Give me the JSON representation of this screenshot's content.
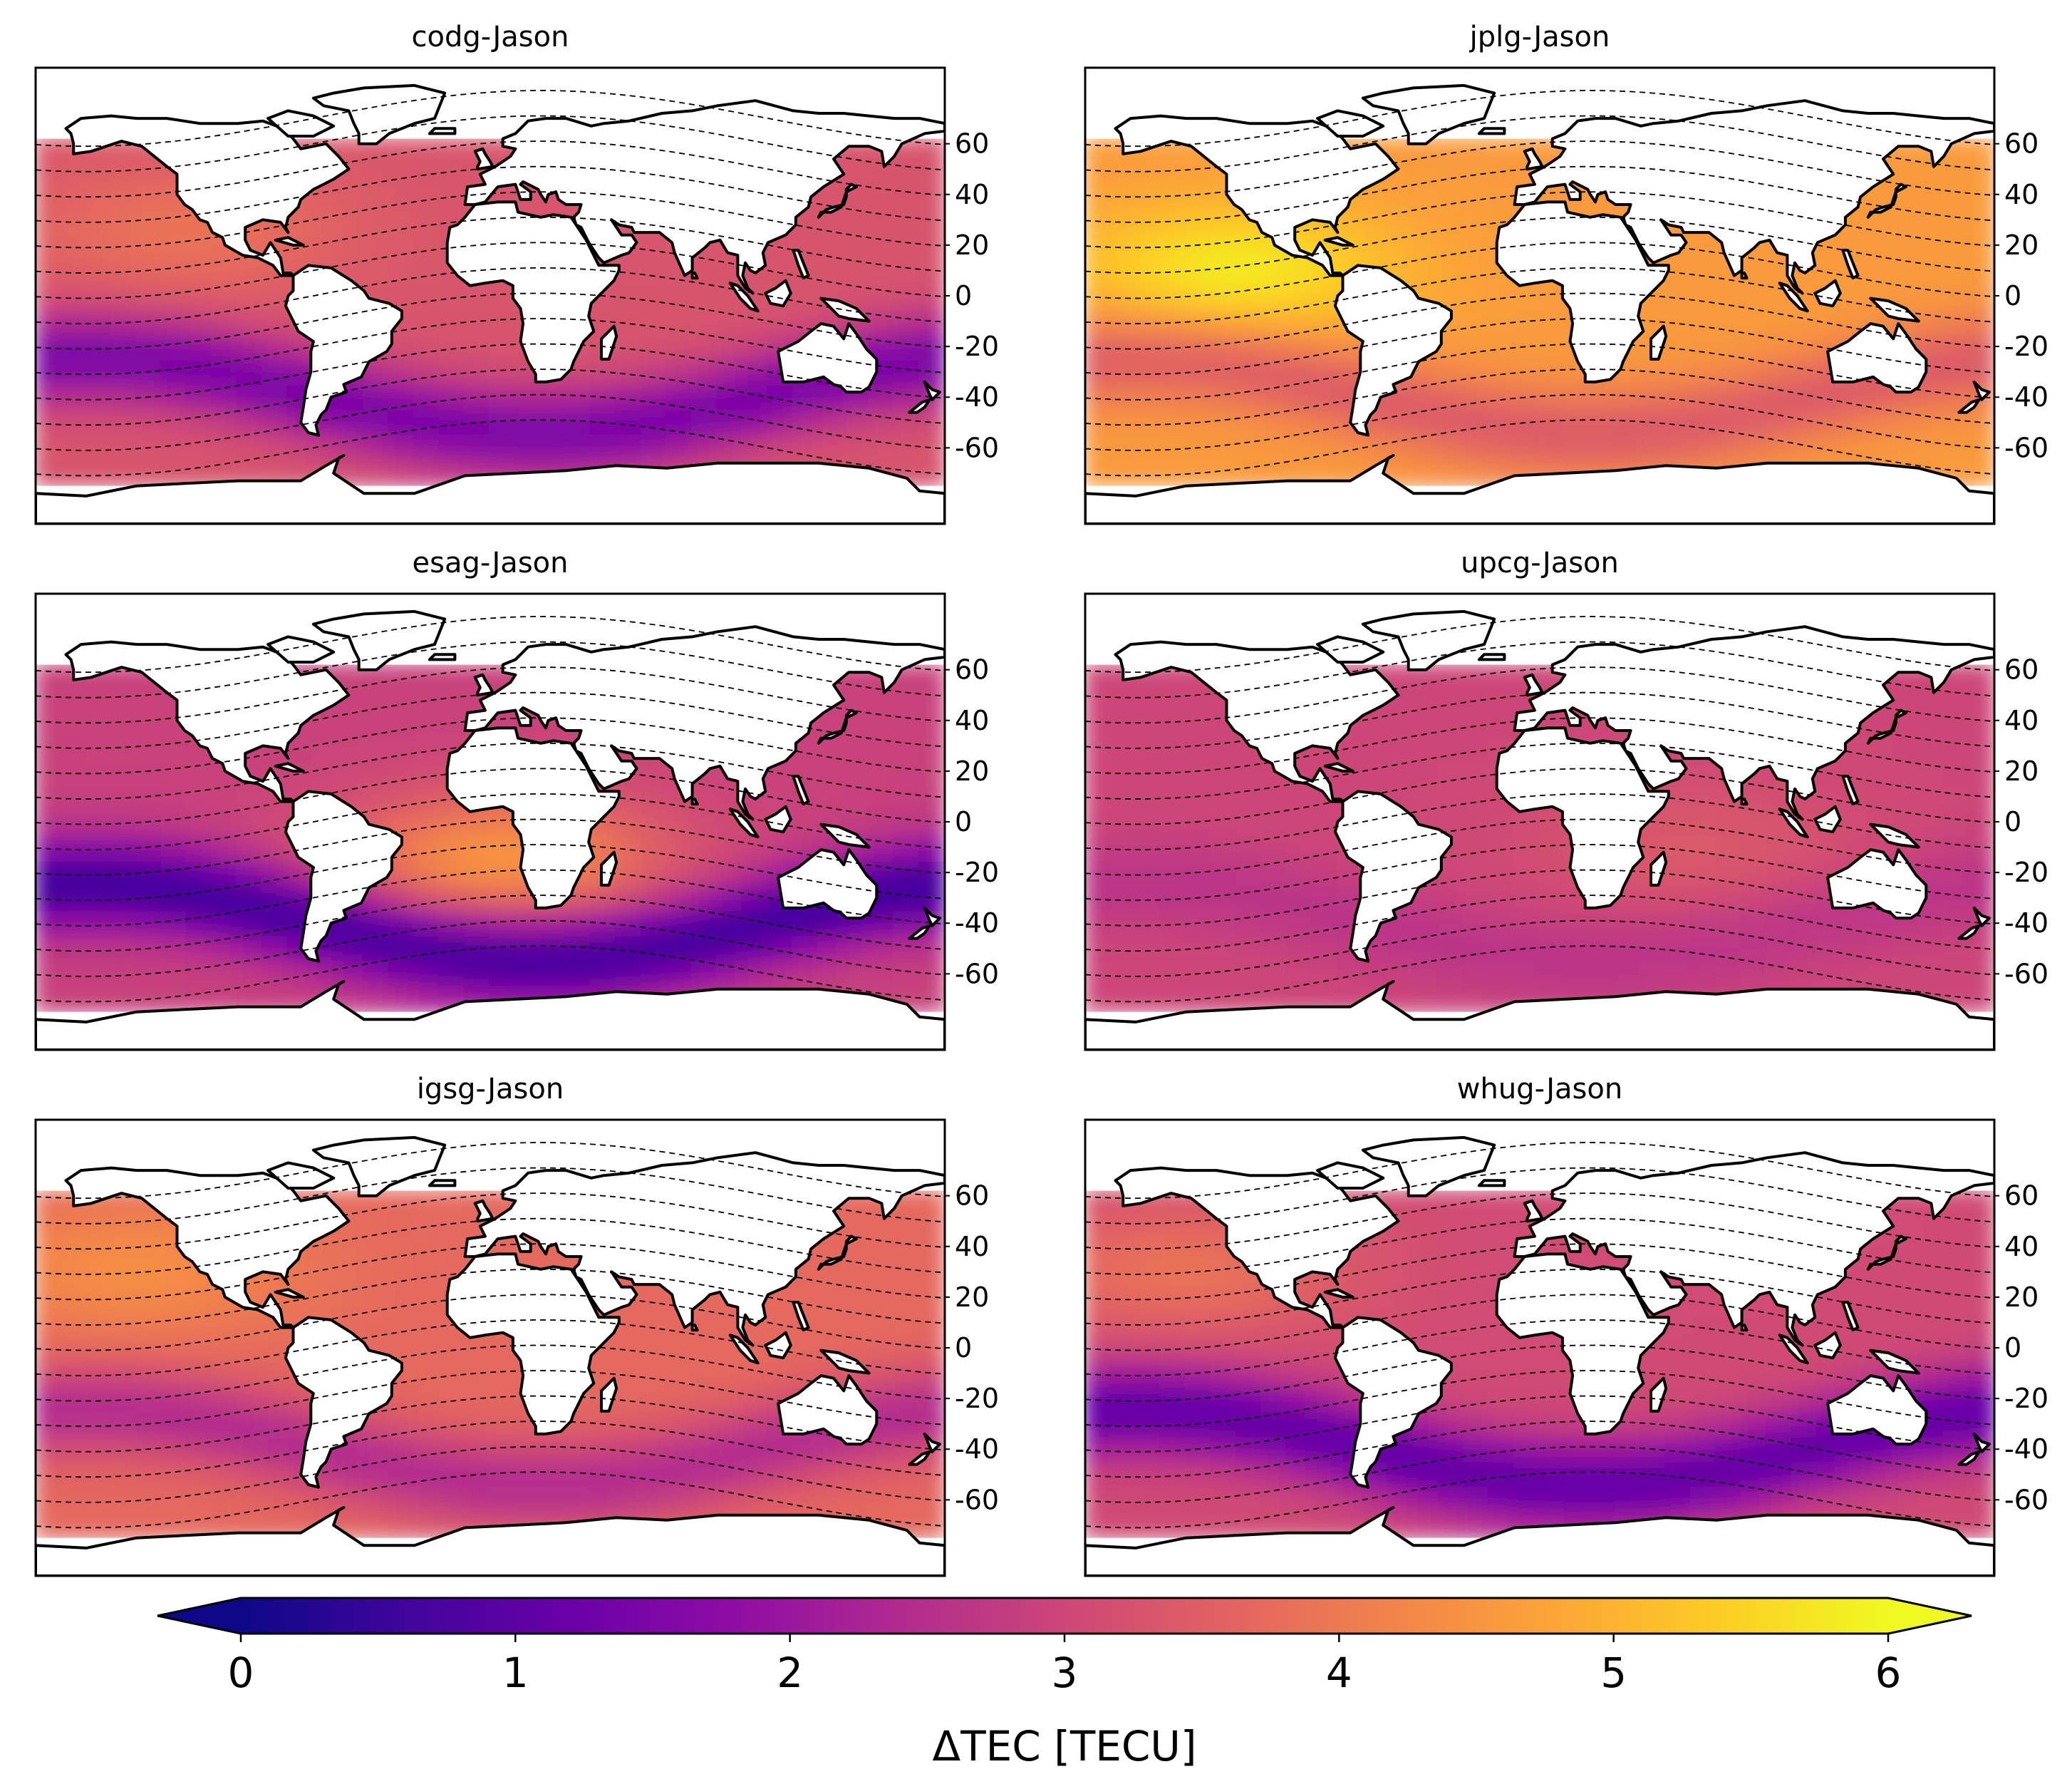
{
  "figure": {
    "panels": [
      {
        "id": "codg",
        "title": "codg-Jason",
        "hot_spot": {
          "lon": -120,
          "lat": 25,
          "value": 3.9
        },
        "base_value": 3.3,
        "trough_value": 1.4
      },
      {
        "id": "jplg",
        "title": "jplg-Jason",
        "hot_spot": {
          "lon": -120,
          "lat": 10,
          "value": 5.8
        },
        "base_value": 4.6,
        "trough_value": 3.4
      },
      {
        "id": "esag",
        "title": "esag-Jason",
        "hot_spot": {
          "lon": 5,
          "lat": -15,
          "value": 4.5
        },
        "base_value": 2.9,
        "trough_value": 0.5
      },
      {
        "id": "upcg",
        "title": "upcg-Jason",
        "hot_spot": {
          "lon": 60,
          "lat": -10,
          "value": 3.4
        },
        "base_value": 3.0,
        "trough_value": 2.6
      },
      {
        "id": "igsg",
        "title": "igsg-Jason",
        "hot_spot": {
          "lon": -140,
          "lat": 30,
          "value": 4.4
        },
        "base_value": 3.7,
        "trough_value": 2.4
      },
      {
        "id": "whug",
        "title": "whug-Jason",
        "hot_spot": {
          "lon": -140,
          "lat": 30,
          "value": 3.9
        },
        "base_value": 3.1,
        "trough_value": 1.0
      }
    ],
    "lat_ticks": [
      "60",
      "40",
      "20",
      "0",
      "-20",
      "-40",
      "-60"
    ],
    "lat_tick_values": [
      60,
      40,
      20,
      0,
      -20,
      -40,
      -60
    ],
    "data_lat_range": [
      -75,
      62
    ],
    "map_extent": {
      "lon": [
        -180,
        180
      ],
      "lat": [
        -90,
        90
      ]
    },
    "dashed_line_count": 14
  },
  "colorbar": {
    "label": "ΔTEC [TECU]",
    "min": 0,
    "max": 6,
    "extend": "both",
    "ticks": [
      "0",
      "1",
      "2",
      "3",
      "4",
      "5",
      "6"
    ],
    "tick_values": [
      0,
      1,
      2,
      3,
      4,
      5,
      6
    ],
    "colormap": "plasma",
    "colors": [
      "#0d0887",
      "#41049d",
      "#6a00a8",
      "#8f0da4",
      "#b12a90",
      "#cc4778",
      "#e16462",
      "#f2844b",
      "#fca636",
      "#fcce25",
      "#f0f921"
    ]
  }
}
